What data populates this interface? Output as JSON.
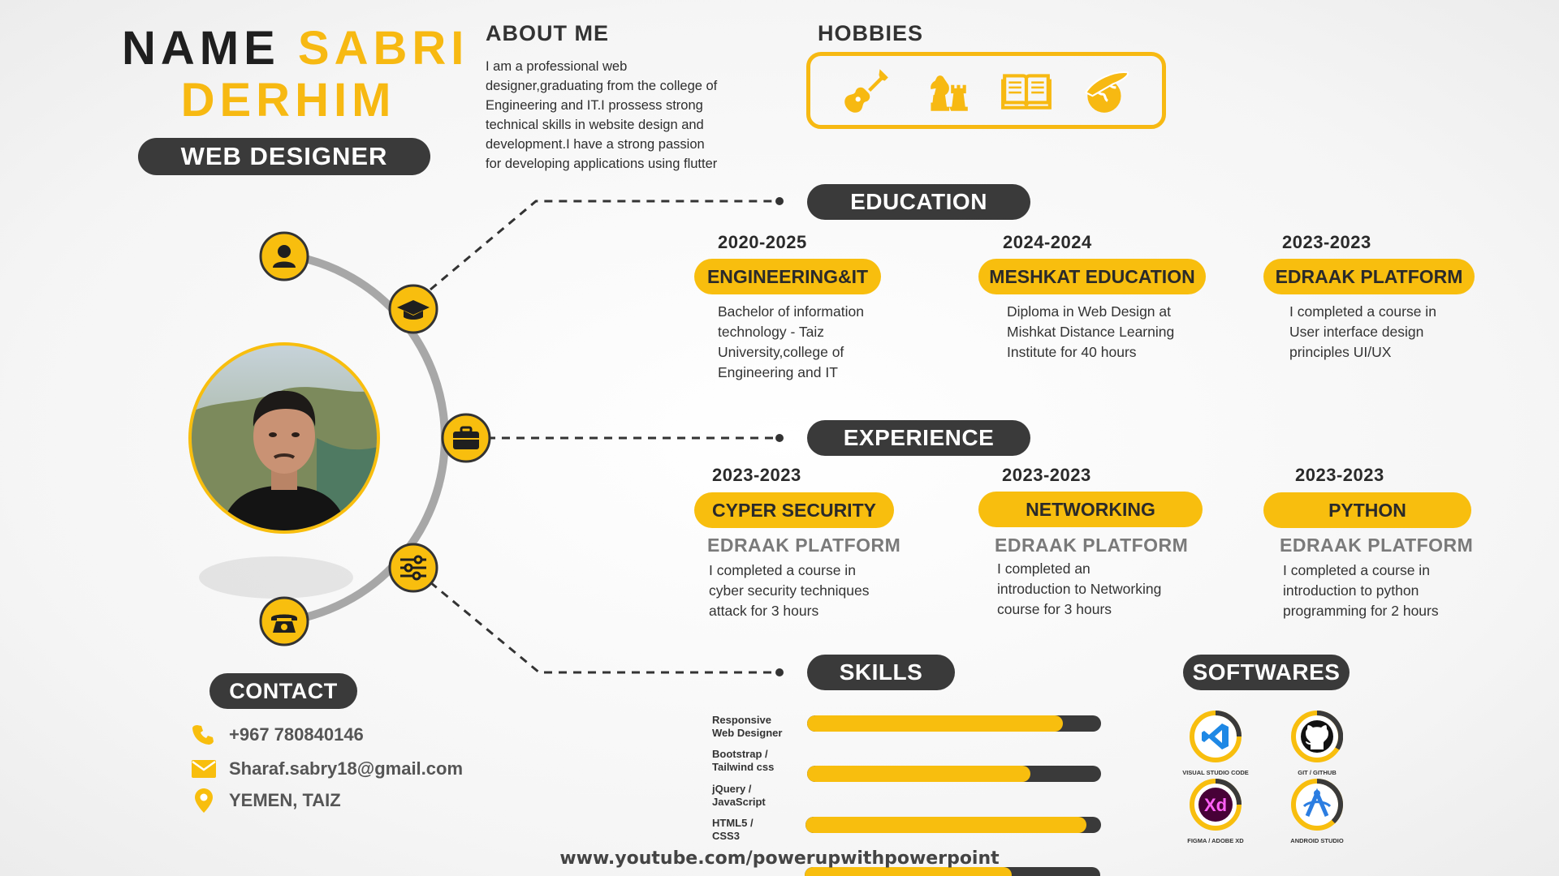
{
  "header": {
    "name_label": "NAME",
    "first_name": "SABRI",
    "last_name": "DERHIM",
    "role": "WEB DESIGNER"
  },
  "about": {
    "title": "ABOUT ME",
    "text": "I am a professional web designer,graduating from the college of Engineering and IT.I prossess strong technical skills in website design and development.I have a strong passion for developing applications using flutter"
  },
  "hobbies": {
    "title": "HOBBIES",
    "icons": [
      "guitar-icon",
      "chess-icon",
      "book-icon",
      "travel-globe-icon"
    ]
  },
  "education": {
    "title": "EDUCATION",
    "items": [
      {
        "years": "2020-2025",
        "name": "ENGINEERING&IT",
        "desc": "Bachelor of information technology - Taiz University,college of Engineering and IT"
      },
      {
        "years": "2024-2024",
        "name": "MESHKAT EDUCATION",
        "desc": "Diploma in Web Design at Mishkat Distance Learning Institute for 40 hours"
      },
      {
        "years": "2023-2023",
        "name": "EDRAAK PLATFORM",
        "desc": "I completed a course in User interface design principles UI/UX"
      }
    ]
  },
  "experience": {
    "title": "EXPERIENCE",
    "items": [
      {
        "years": "2023-2023",
        "name": "CYPER SECURITY",
        "org": "EDRAAK PLATFORM",
        "desc": "I completed a course in cyber security techniques attack for 3 hours"
      },
      {
        "years": "2023-2023",
        "name": "NETWORKING",
        "org": "EDRAAK PLATFORM",
        "desc": "I completed an introduction to Networking course for 3 hours"
      },
      {
        "years": "2023-2023",
        "name": "PYTHON",
        "org": "EDRAAK PLATFORM",
        "desc": "I completed a course in introduction to python programming for 2 hours"
      }
    ]
  },
  "skills": {
    "title": "SKILLS",
    "items": [
      {
        "label_1": "Responsive",
        "label_2": "Web Designer",
        "level": 0.87
      },
      {
        "label_1": "Bootstrap /",
        "label_2": "Tailwind css",
        "level": 0.76
      },
      {
        "label_1": "jQuery /",
        "label_2": "JavaScript",
        "level": 0.95
      },
      {
        "label_1": "HTML5 /",
        "label_2": "CSS3",
        "level": 0.7
      }
    ]
  },
  "softwares": {
    "title": "SOFTWARES",
    "items": [
      {
        "label": "VISUAL STUDIO CODE",
        "icon": "vscode-icon",
        "color": "#1e88e5"
      },
      {
        "label": "GIT / GITHUB",
        "icon": "github-icon",
        "color": "#111111"
      },
      {
        "label": "FIGMA / ADOBE XD",
        "icon": "adobe-xd-icon",
        "color": "#ff2bc2"
      },
      {
        "label": "ANDROID STUDIO",
        "icon": "android-studio-icon",
        "color": "#2b7de1"
      }
    ]
  },
  "contact": {
    "title": "CONTACT",
    "phone": "+967 780840146",
    "email": "Sharaf.sabry18@gmail.com",
    "location": "YEMEN, TAIZ"
  },
  "footer": {
    "url": "www.youtube.com/powerupwithpowerpoint"
  },
  "colors": {
    "accent": "#f8be0e",
    "dark": "#3a3a3a"
  }
}
